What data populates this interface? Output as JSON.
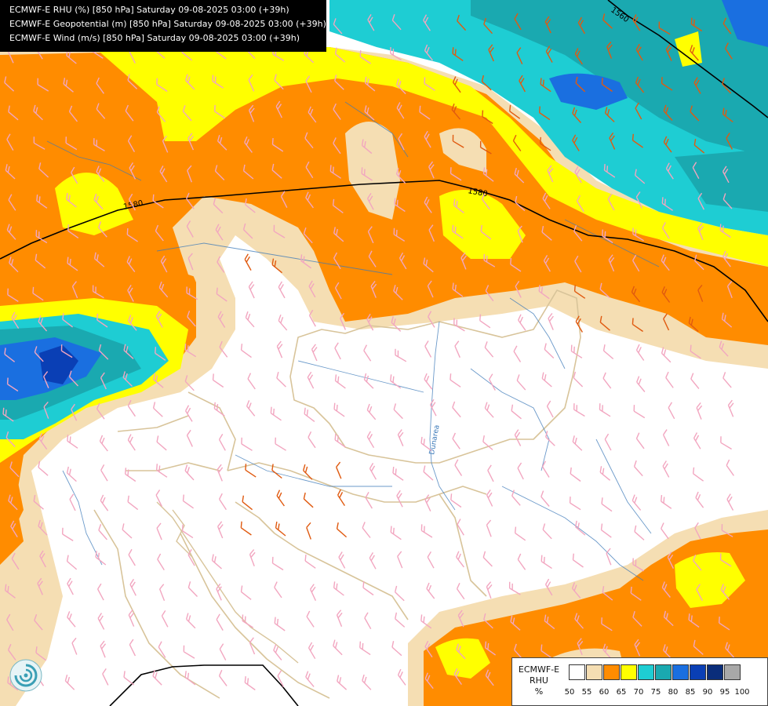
{
  "header": {
    "lines": [
      "ECMWF-E RHU (%) [850 hPa] Saturday 09-08-2025 03:00 (+39h)",
      "ECMWF-E Geopotential (m) [850 hPa] Saturday 09-08-2025 03:00 (+39h)",
      "ECMWF-E Wind (m/s) [850 hPa] Saturday 09-08-2025 03:00 (+39h)"
    ]
  },
  "contours": [
    {
      "label": "1580"
    },
    {
      "label": "1580"
    },
    {
      "label": "1560"
    }
  ],
  "map_labels": {
    "river": "Dunarea"
  },
  "legend": {
    "title_line1": "ECMWF-E",
    "title_line2": "RHU",
    "unit": "%",
    "levels": [
      "50",
      "55",
      "60",
      "65",
      "70",
      "75",
      "80",
      "85",
      "90",
      "95",
      "100"
    ],
    "colors": [
      "#ffffff",
      "#f5deb3",
      "#ff8c00",
      "#ffff00",
      "#1ecdd3",
      "#1aa9b0",
      "#1a6fe0",
      "#0a3fb5",
      "#0a2d7a",
      "#a8a8a8",
      "#5a5a5a"
    ]
  },
  "logo": {
    "icon": "ecmwf-swirl-icon"
  }
}
